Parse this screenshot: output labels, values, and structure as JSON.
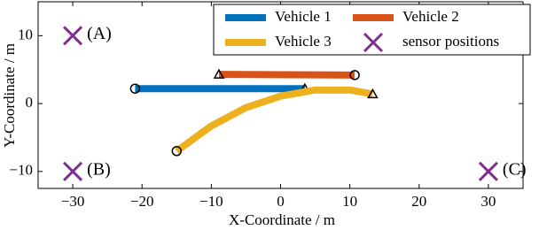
{
  "chart_data": {
    "type": "line",
    "xlabel": "X-Coordinate / m",
    "ylabel": "Y-Coordinate / m",
    "xlim": [
      -35,
      35
    ],
    "ylim": [
      -12.5,
      15
    ],
    "xticks": [
      {
        "value": -30,
        "label": "−30"
      },
      {
        "value": -20,
        "label": "−20"
      },
      {
        "value": -10,
        "label": "−10"
      },
      0,
      10,
      20,
      30
    ],
    "yticks": [
      {
        "value": -10,
        "label": "−10"
      },
      0,
      10
    ],
    "legend": "top-right",
    "series": [
      {
        "name": "Vehicle 1",
        "color": "#0072bd",
        "x": [
          -21,
          3.5
        ],
        "y": [
          2.2,
          2.2
        ]
      },
      {
        "name": "Vehicle 2",
        "color": "#d95319",
        "x": [
          10.7,
          -8.9
        ],
        "y": [
          4.2,
          4.3
        ]
      },
      {
        "name": "Vehicle 3",
        "color": "#edb120",
        "x": [
          -15,
          -10,
          -5,
          0,
          5,
          10,
          13.3
        ],
        "y": [
          -7,
          -3.3,
          -0.6,
          1.1,
          2.0,
          2.0,
          1.4
        ]
      },
      {
        "name": "sensor positions",
        "color": "#7e2f8e",
        "marker": "x",
        "x": [
          -30,
          -30,
          30
        ],
        "y": [
          10,
          -10,
          -10
        ],
        "labels": [
          "(A)",
          "(B)",
          "(C)"
        ]
      }
    ]
  }
}
